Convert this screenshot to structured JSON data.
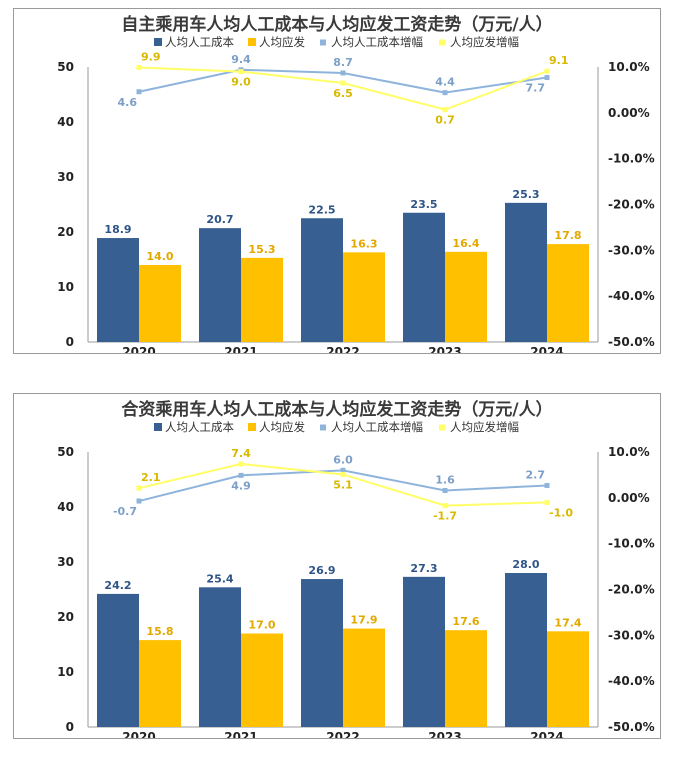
{
  "chart_data": [
    {
      "type": "bar",
      "title": "自主乘用车人均人工成本与人均应发工资走势（万元/人）",
      "categories": [
        "2020",
        "2021",
        "2022",
        "2023",
        "2024"
      ],
      "series": [
        {
          "name": "人均人工成本",
          "kind": "bar",
          "axis": "left",
          "color": "#375f91",
          "label_color": "#2f5486",
          "values": [
            18.9,
            20.7,
            22.5,
            23.5,
            25.3
          ]
        },
        {
          "name": "人均应发",
          "kind": "bar",
          "axis": "left",
          "color": "#ffc000",
          "label_color": "#e2a800",
          "values": [
            14.0,
            15.3,
            16.3,
            16.4,
            17.8
          ]
        },
        {
          "name": "人均人工成本增幅",
          "kind": "line",
          "axis": "right",
          "color": "#8fb4dc",
          "label_color": "#7c9fc8",
          "values": [
            4.6,
            9.4,
            8.7,
            4.4,
            7.7
          ]
        },
        {
          "name": "人均应发增幅",
          "kind": "line",
          "axis": "right",
          "color": "#ffff66",
          "label_color": "#d9b800",
          "values": [
            9.9,
            9.0,
            6.5,
            0.7,
            9.1
          ]
        }
      ],
      "y_left": {
        "min": 0,
        "max": 50,
        "ticks": [
          "0",
          "10",
          "20",
          "30",
          "40",
          "50"
        ]
      },
      "y_right": {
        "min": -50,
        "max": 10,
        "ticks": [
          "-50.0%",
          "-40.0%",
          "-30.0%",
          "-20.0%",
          "-10.0%",
          "0.00%",
          "10.0%"
        ]
      },
      "legend_position": "top",
      "grid": false
    },
    {
      "type": "bar",
      "title": "合资乘用车人均人工成本与人均应发工资走势（万元/人）",
      "categories": [
        "2020",
        "2021",
        "2022",
        "2023",
        "2024"
      ],
      "series": [
        {
          "name": "人均人工成本",
          "kind": "bar",
          "axis": "left",
          "color": "#375f91",
          "label_color": "#2f5486",
          "values": [
            24.2,
            25.4,
            26.9,
            27.3,
            28.0
          ]
        },
        {
          "name": "人均应发",
          "kind": "bar",
          "axis": "left",
          "color": "#ffc000",
          "label_color": "#e2a800",
          "values": [
            15.8,
            17.0,
            17.9,
            17.6,
            17.4
          ]
        },
        {
          "name": "人均人工成本增幅",
          "kind": "line",
          "axis": "right",
          "color": "#8fb4dc",
          "label_color": "#7c9fc8",
          "values": [
            -0.7,
            4.9,
            6.0,
            1.6,
            2.7
          ]
        },
        {
          "name": "人均应发增幅",
          "kind": "line",
          "axis": "right",
          "color": "#ffff66",
          "label_color": "#d9b800",
          "values": [
            2.1,
            7.4,
            5.1,
            -1.7,
            -1.0
          ]
        }
      ],
      "y_left": {
        "min": 0,
        "max": 50,
        "ticks": [
          "0",
          "10",
          "20",
          "30",
          "40",
          "50"
        ]
      },
      "y_right": {
        "min": -50,
        "max": 10,
        "ticks": [
          "-50.0%",
          "-40.0%",
          "-30.0%",
          "-20.0%",
          "-10.0%",
          "0.00%",
          "10.0%"
        ]
      },
      "legend_position": "top",
      "grid": false
    }
  ]
}
